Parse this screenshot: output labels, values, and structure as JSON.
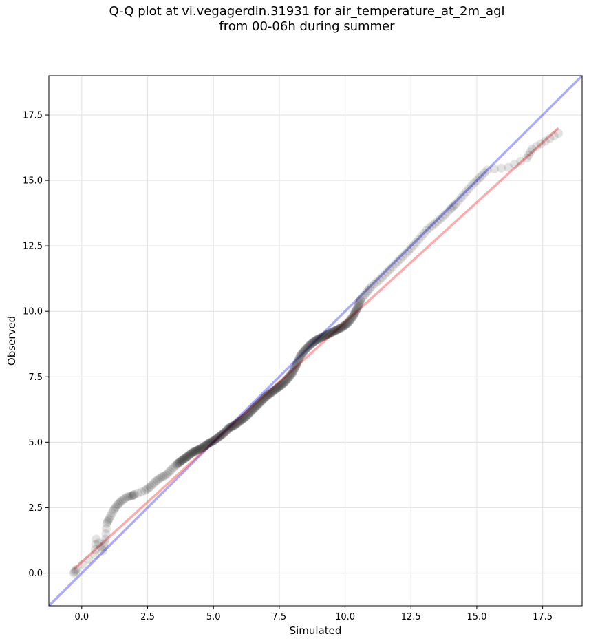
{
  "chart_data": {
    "type": "scatter",
    "title": "Q-Q plot at vi.vegagerdin.31931 for air_temperature_at_2m_agl",
    "subtitle": "from 00-06h during summer",
    "xlabel": "Simulated",
    "ylabel": "Observed",
    "xlim": [
      -1.25,
      19.0
    ],
    "ylim": [
      -1.25,
      19.0
    ],
    "xticks": [
      0.0,
      2.5,
      5.0,
      7.5,
      10.0,
      12.5,
      15.0,
      17.5
    ],
    "yticks": [
      0.0,
      2.5,
      5.0,
      7.5,
      10.0,
      12.5,
      15.0,
      17.5
    ],
    "tick_labels": [
      "0.0",
      "2.5",
      "5.0",
      "7.5",
      "10.0",
      "12.5",
      "15.0",
      "17.5"
    ],
    "grid": true,
    "legend": "none",
    "colors": {
      "points": "#000000",
      "identity_line": "#0000ff",
      "fit_line": "#ff0000"
    },
    "series": [
      {
        "kind": "scatter",
        "points": [
          [
            -0.3,
            0.0
          ],
          [
            -0.2,
            0.15
          ],
          [
            0.5,
            0.7
          ],
          [
            0.55,
            1.3
          ],
          [
            0.8,
            0.85
          ],
          [
            0.9,
            1.3
          ],
          [
            0.95,
            1.9
          ],
          [
            1.05,
            2.1
          ],
          [
            1.2,
            2.4
          ],
          [
            1.35,
            2.6
          ],
          [
            1.5,
            2.75
          ],
          [
            1.7,
            2.9
          ],
          [
            1.9,
            2.95
          ],
          [
            2.0,
            3.0
          ],
          [
            2.4,
            3.15
          ],
          [
            2.6,
            3.3
          ],
          [
            2.8,
            3.5
          ],
          [
            3.0,
            3.65
          ],
          [
            3.2,
            3.75
          ],
          [
            3.4,
            3.95
          ],
          [
            3.6,
            4.15
          ],
          [
            3.8,
            4.3
          ],
          [
            4.0,
            4.45
          ],
          [
            4.2,
            4.6
          ],
          [
            4.4,
            4.7
          ],
          [
            4.6,
            4.8
          ],
          [
            4.8,
            4.95
          ],
          [
            5.0,
            5.05
          ],
          [
            5.2,
            5.2
          ],
          [
            5.4,
            5.35
          ],
          [
            5.6,
            5.55
          ],
          [
            5.8,
            5.65
          ],
          [
            6.0,
            5.8
          ],
          [
            6.2,
            5.95
          ],
          [
            6.4,
            6.15
          ],
          [
            6.6,
            6.35
          ],
          [
            6.8,
            6.55
          ],
          [
            7.0,
            6.75
          ],
          [
            7.2,
            6.9
          ],
          [
            7.4,
            7.05
          ],
          [
            7.6,
            7.2
          ],
          [
            7.8,
            7.4
          ],
          [
            8.0,
            7.65
          ],
          [
            8.15,
            7.95
          ],
          [
            8.3,
            8.3
          ],
          [
            8.5,
            8.55
          ],
          [
            8.7,
            8.75
          ],
          [
            8.9,
            8.9
          ],
          [
            9.1,
            9.0
          ],
          [
            9.3,
            9.1
          ],
          [
            9.5,
            9.2
          ],
          [
            9.7,
            9.3
          ],
          [
            9.9,
            9.4
          ],
          [
            10.1,
            9.55
          ],
          [
            10.3,
            9.8
          ],
          [
            10.45,
            10.1
          ],
          [
            10.6,
            10.45
          ],
          [
            10.8,
            10.7
          ],
          [
            11.0,
            10.95
          ],
          [
            11.3,
            11.2
          ],
          [
            11.6,
            11.5
          ],
          [
            11.9,
            11.8
          ],
          [
            12.2,
            12.1
          ],
          [
            12.5,
            12.4
          ],
          [
            12.8,
            12.75
          ],
          [
            13.1,
            13.1
          ],
          [
            13.4,
            13.35
          ],
          [
            13.7,
            13.6
          ],
          [
            14.0,
            13.9
          ],
          [
            14.2,
            14.1
          ],
          [
            14.5,
            14.45
          ],
          [
            14.8,
            14.8
          ],
          [
            15.1,
            15.1
          ],
          [
            15.4,
            15.4
          ],
          [
            16.2,
            15.5
          ],
          [
            16.9,
            15.85
          ],
          [
            17.1,
            16.2
          ],
          [
            17.6,
            16.5
          ],
          [
            18.1,
            16.8
          ]
        ]
      },
      {
        "kind": "line",
        "role": "identity",
        "x": [
          -1.25,
          19.0
        ],
        "y": [
          -1.25,
          19.0
        ]
      },
      {
        "kind": "line",
        "role": "fit",
        "x": [
          -0.3,
          18.1
        ],
        "y": [
          0.15,
          17.0
        ]
      }
    ]
  }
}
